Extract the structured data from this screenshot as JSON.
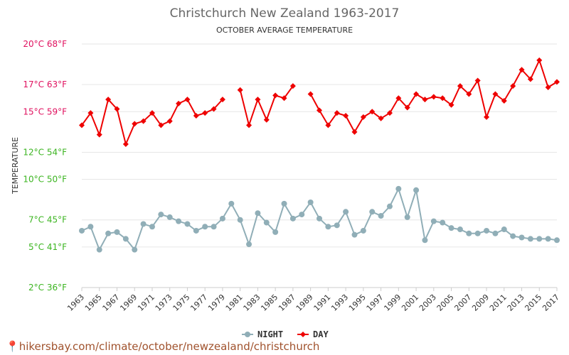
{
  "chart_data": {
    "type": "line",
    "title": "Christchurch New Zealand 1963-2017",
    "subtitle": "OCTOBER AVERAGE TEMPERATURE",
    "ylabel": "TEMPERATURE",
    "ylim": [
      2,
      20
    ],
    "yticks": [
      {
        "value": 20,
        "label": "20°C 68°F"
      },
      {
        "value": 17,
        "label": "17°C 63°F"
      },
      {
        "value": 15,
        "label": "15°C 59°F"
      },
      {
        "value": 12,
        "label": "12°C 54°F"
      },
      {
        "value": 10,
        "label": "10°C 50°F"
      },
      {
        "value": 7,
        "label": "7°C 45°F"
      },
      {
        "value": 5,
        "label": "5°C 41°F"
      },
      {
        "value": 2,
        "label": "2°C 36°F"
      }
    ],
    "x": [
      1963,
      1964,
      1965,
      1966,
      1967,
      1968,
      1969,
      1970,
      1971,
      1972,
      1973,
      1974,
      1975,
      1976,
      1977,
      1978,
      1979,
      1980,
      1981,
      1982,
      1983,
      1984,
      1985,
      1986,
      1987,
      1988,
      1989,
      1990,
      1991,
      1992,
      1993,
      1994,
      1995,
      1996,
      1997,
      1998,
      1999,
      2000,
      2001,
      2002,
      2003,
      2004,
      2005,
      2006,
      2007,
      2008,
      2009,
      2010,
      2011,
      2012,
      2013,
      2014,
      2015,
      2016,
      2017
    ],
    "xtick_labels": [
      "1963",
      "1965",
      "1967",
      "1969",
      "1971",
      "1973",
      "1975",
      "1977",
      "1979",
      "1981",
      "1983",
      "1985",
      "1987",
      "1989",
      "1991",
      "1993",
      "1995",
      "1997",
      "1999",
      "2001",
      "2003",
      "2005",
      "2007",
      "2009",
      "2011",
      "2013",
      "2015",
      "2017"
    ],
    "grid": true,
    "legend_position": "bottom",
    "series": [
      {
        "name": "NIGHT",
        "color": "#90aeb7",
        "marker": "circle",
        "values": [
          6.2,
          6.5,
          4.8,
          6.0,
          6.1,
          5.6,
          4.8,
          6.7,
          6.5,
          7.4,
          7.2,
          6.9,
          6.7,
          6.2,
          6.5,
          6.5,
          7.1,
          8.2,
          7.0,
          5.2,
          7.5,
          6.8,
          6.1,
          8.2,
          7.1,
          7.4,
          8.3,
          7.1,
          6.5,
          6.6,
          7.6,
          5.9,
          6.2,
          7.6,
          7.3,
          8.0,
          9.3,
          7.2,
          9.2,
          5.5,
          6.9,
          6.8,
          6.4,
          6.3,
          6.0,
          6.0,
          6.2,
          6.0,
          6.3,
          5.8,
          5.7,
          5.6,
          5.6,
          5.6,
          5.5
        ]
      },
      {
        "name": "DAY",
        "color": "#ee0000",
        "marker": "diamond",
        "values": [
          14.0,
          14.9,
          13.3,
          15.9,
          15.2,
          12.6,
          14.1,
          14.3,
          14.9,
          14.0,
          14.3,
          15.6,
          15.9,
          14.7,
          14.9,
          15.2,
          15.9,
          null,
          16.6,
          14.0,
          15.9,
          14.4,
          16.2,
          16.0,
          16.9,
          null,
          16.3,
          15.1,
          14.0,
          14.9,
          14.7,
          13.5,
          14.6,
          15.0,
          14.5,
          14.9,
          16.0,
          15.3,
          16.3,
          15.9,
          16.1,
          16.0,
          15.5,
          16.9,
          16.3,
          17.3,
          14.6,
          16.3,
          15.8,
          16.9,
          18.1,
          17.4,
          18.8,
          16.8,
          17.2
        ]
      }
    ]
  },
  "source": {
    "text": "hikersbay.com/climate/october/newzealand/christchurch"
  }
}
